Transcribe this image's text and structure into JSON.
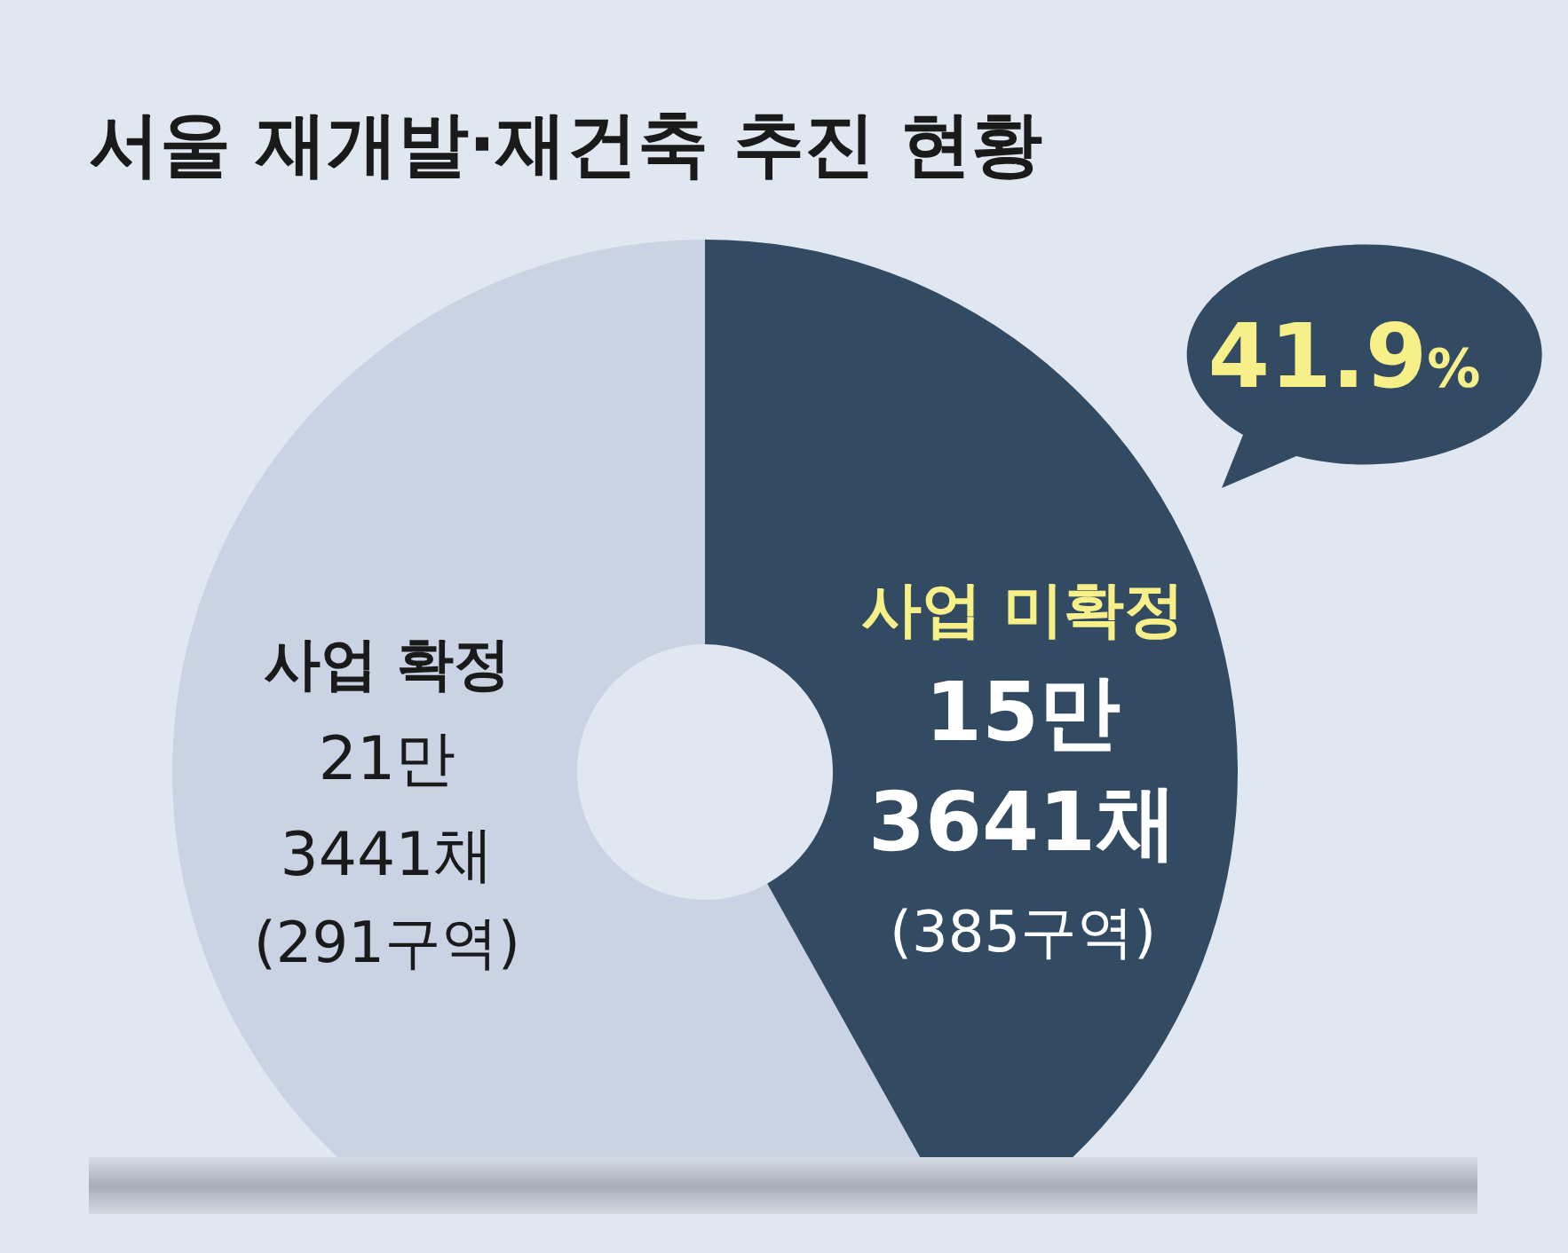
{
  "chart_data": {
    "type": "donut",
    "title": "서울 재개발·재건축 추진 현황",
    "categories": [
      "사업 확정",
      "사업 미확정"
    ],
    "values": [
      58.1,
      41.9
    ],
    "colors": [
      "#c9d3e4",
      "#324b63"
    ],
    "annotations": [
      "21만 3441채",
      "(291구역)",
      "15만 3641채",
      "(385구역)",
      "41.9%"
    ]
  }
}
